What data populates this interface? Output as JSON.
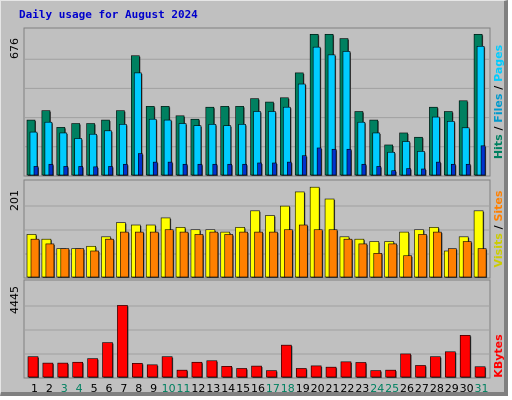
{
  "title": "Daily usage for August 2024",
  "colors": {
    "frame": "#c0c0c0",
    "panel_bg": "#c0c0c0",
    "grid": "#a0a0a0",
    "title": "#0000cc",
    "pages": "#0033cc",
    "files": "#00ccff",
    "hits": "#008060",
    "visits": "#ffff00",
    "sites": "#ff8000",
    "kbytes": "#ff0000",
    "weekend_day": "#008060",
    "weekday": "#000000"
  },
  "y_axes": {
    "top_max_label": "676",
    "mid_max_label": "201",
    "bottom_max_label": "4445"
  },
  "right_labels": {
    "top": [
      {
        "text": "Hits",
        "color": "#008060"
      },
      {
        "text": " / ",
        "color": "#000000"
      },
      {
        "text": "Files",
        "color": "#0099cc"
      },
      {
        "text": " / ",
        "color": "#000000"
      },
      {
        "text": "Pages",
        "color": "#00ccff"
      }
    ],
    "mid": [
      {
        "text": "Visits",
        "color": "#cccc00"
      },
      {
        "text": " / ",
        "color": "#000000"
      },
      {
        "text": "Sites",
        "color": "#ff8000"
      }
    ],
    "bottom": [
      {
        "text": "KBytes",
        "color": "#ff0000"
      }
    ]
  },
  "chart_data": {
    "type": "bar",
    "title": "Daily usage for August 2024",
    "x": [
      1,
      2,
      3,
      4,
      5,
      6,
      7,
      8,
      9,
      10,
      11,
      12,
      13,
      14,
      15,
      16,
      17,
      18,
      19,
      20,
      21,
      22,
      23,
      24,
      25,
      26,
      27,
      28,
      29,
      30,
      31
    ],
    "x_labels": [
      "1",
      "2",
      "3",
      "4",
      "5",
      "6",
      "7",
      "8",
      "9",
      "10",
      "11",
      "12",
      "13",
      "14",
      "15",
      "16",
      "17",
      "18",
      "19",
      "20",
      "21",
      "22",
      "23",
      "24",
      "25",
      "26",
      "27",
      "28",
      "29",
      "30",
      "31"
    ],
    "weekend_days": [
      3,
      4,
      10,
      11,
      17,
      18,
      24,
      25,
      31
    ],
    "panels": [
      {
        "ylim": [
          0,
          676
        ],
        "series": [
          {
            "name": "Hits",
            "values": [
              256,
              300,
              222,
              240,
              240,
              256,
              300,
              556,
              320,
              320,
              276,
              260,
              316,
              320,
              320,
              356,
              340,
              360,
              476,
              656,
              656,
              636,
              296,
              256,
              140,
              196,
              176,
              316,
              296,
              346,
              656
            ]
          },
          {
            "name": "Files",
            "values": [
              200,
              246,
              196,
              170,
              190,
              206,
              236,
              476,
              260,
              256,
              240,
              230,
              236,
              230,
              236,
              296,
              296,
              316,
              424,
              596,
              560,
              576,
              246,
              196,
              106,
              156,
              110,
              270,
              250,
              220,
              600
            ]
          },
          {
            "name": "Pages",
            "values": [
              40,
              50,
              40,
              40,
              38,
              40,
              50,
              100,
              60,
              60,
              50,
              50,
              50,
              50,
              50,
              56,
              56,
              60,
              90,
              126,
              120,
              120,
              50,
              40,
              20,
              30,
              28,
              60,
              50,
              50,
              136
            ]
          }
        ]
      },
      {
        "ylim": [
          0,
          201
        ],
        "series": [
          {
            "name": "Visits",
            "values": [
              90,
              80,
              60,
              60,
              65,
              85,
              115,
              110,
              110,
              125,
              105,
              100,
              100,
              95,
              105,
              140,
              130,
              150,
              180,
              190,
              165,
              85,
              80,
              75,
              75,
              95,
              100,
              105,
              55,
              85,
              140
            ]
          },
          {
            "name": "Sites",
            "values": [
              80,
              70,
              60,
              60,
              55,
              80,
              95,
              95,
              95,
              100,
              95,
              90,
              95,
              90,
              95,
              95,
              95,
              100,
              110,
              100,
              100,
              80,
              70,
              50,
              70,
              45,
              90,
              95,
              60,
              75,
              60
            ]
          }
        ]
      },
      {
        "ylim": [
          0,
          4445
        ],
        "series": [
          {
            "name": "KBytes",
            "values": [
              950,
              650,
              650,
              690,
              860,
              1610,
              3350,
              640,
              570,
              950,
              320,
              690,
              760,
              500,
              400,
              510,
              300,
              1490,
              400,
              520,
              460,
              710,
              680,
              300,
              320,
              1080,
              540,
              950,
              1180,
              1950,
              480
            ]
          }
        ]
      }
    ]
  }
}
